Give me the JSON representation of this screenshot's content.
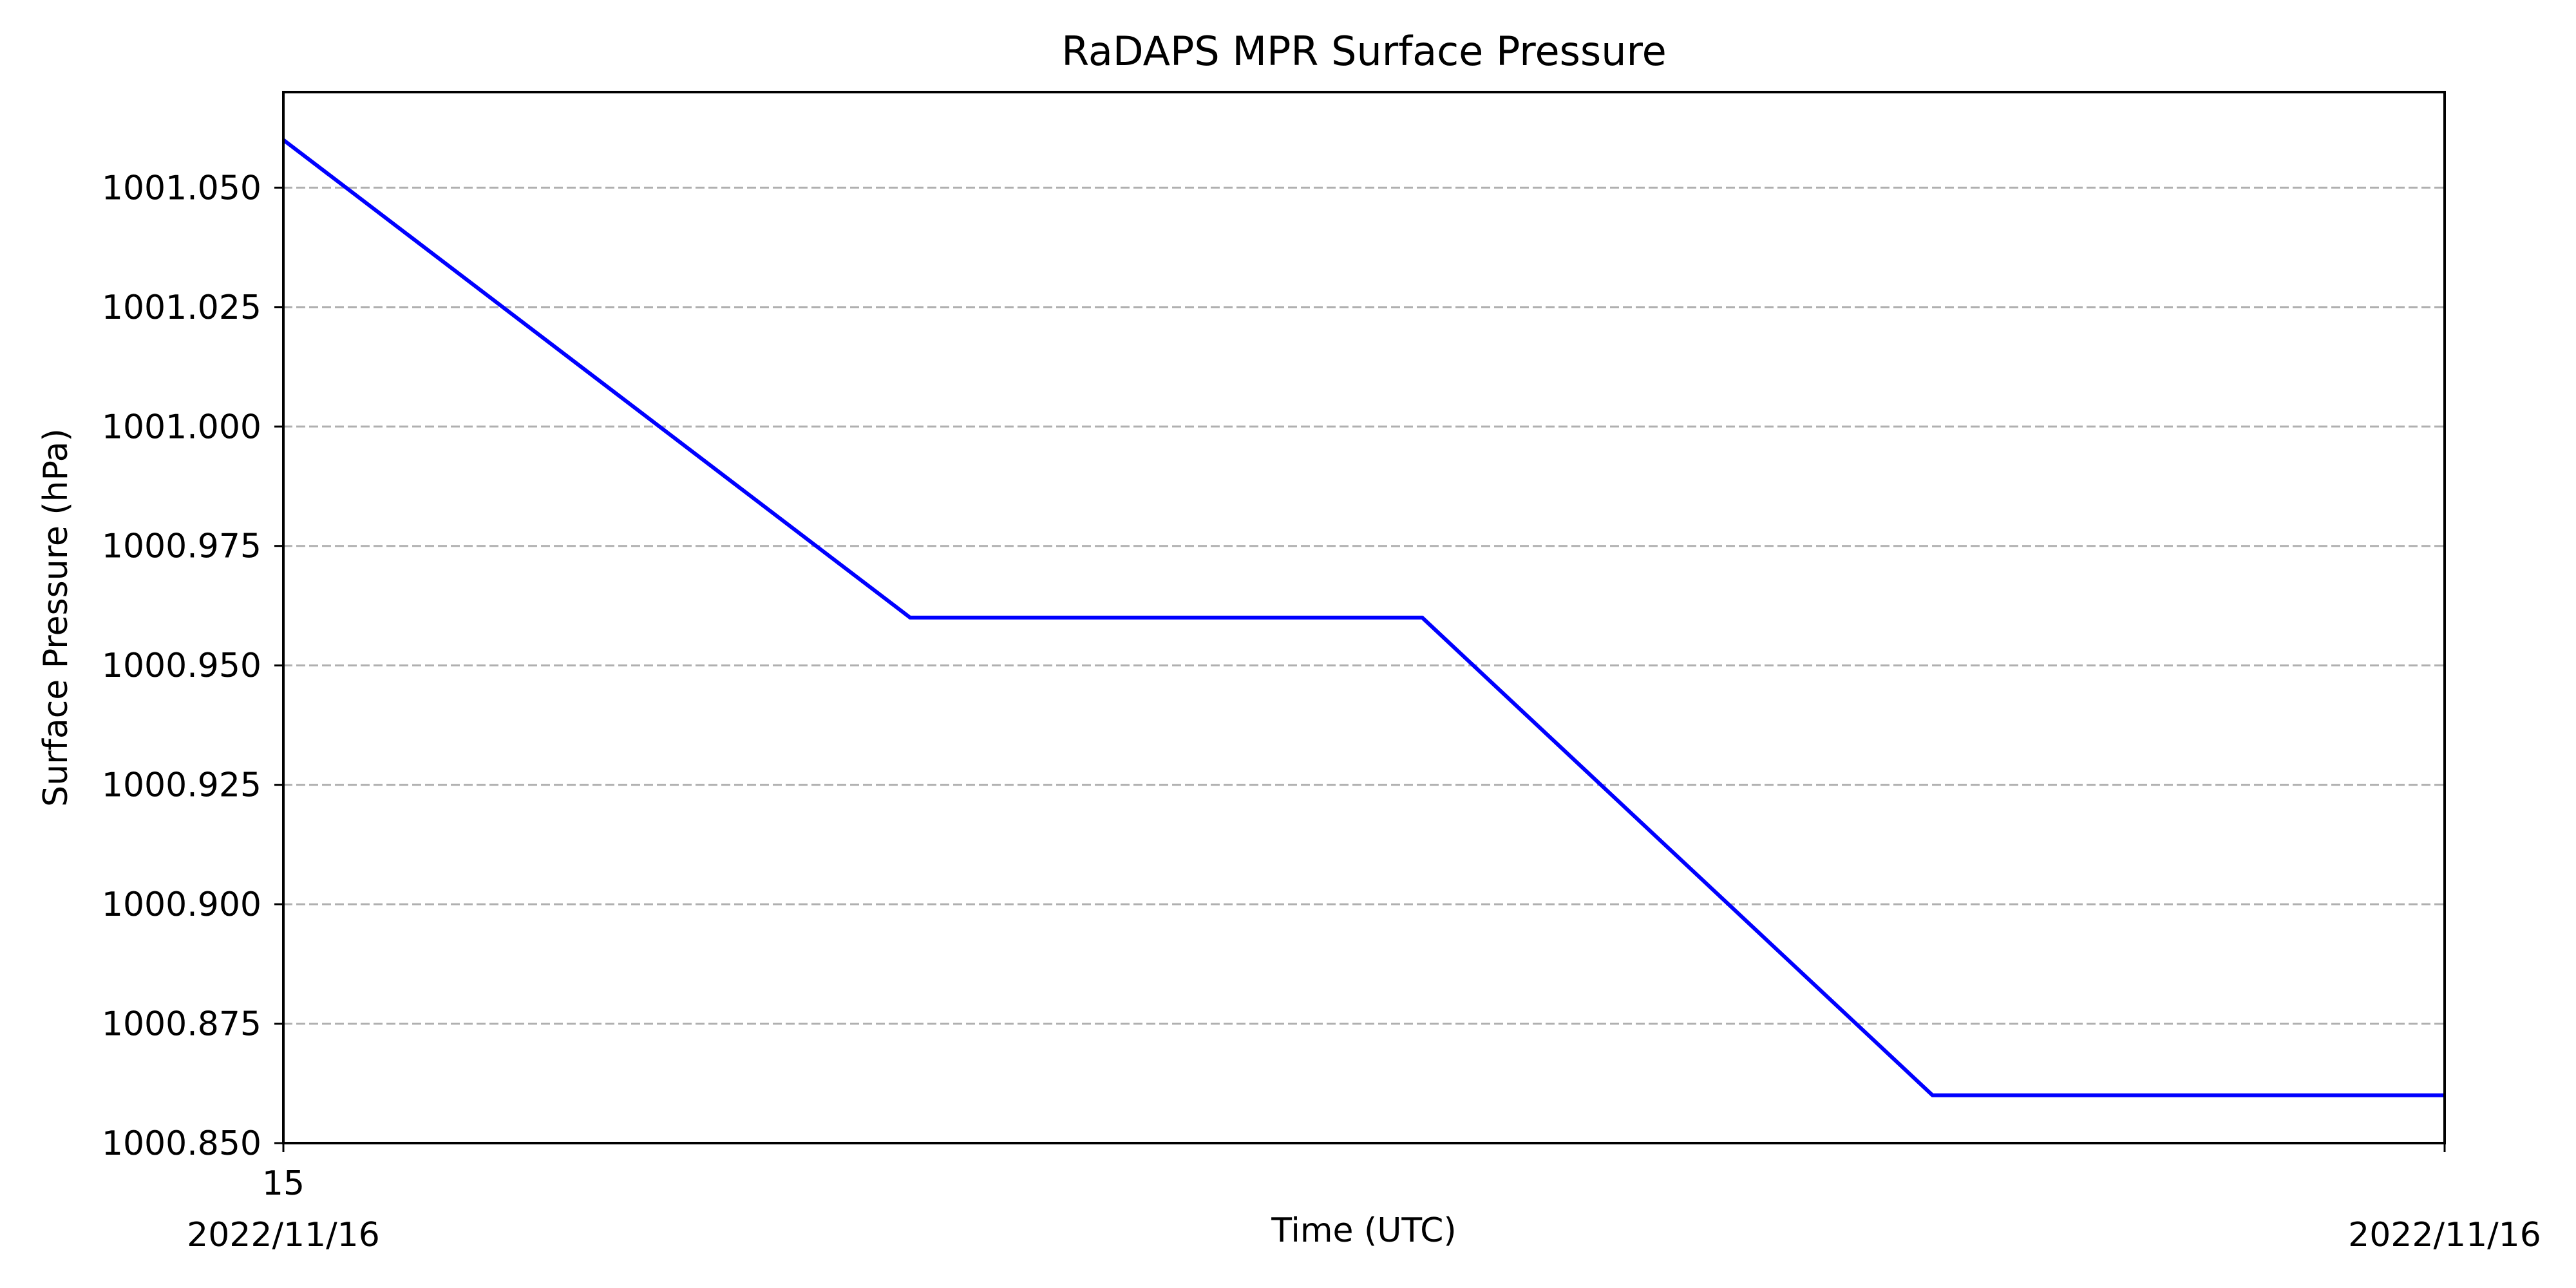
{
  "chart_data": {
    "type": "line",
    "title": "RaDAPS MPR Surface Pressure",
    "xlabel": "Time (UTC)",
    "ylabel": "Surface Pressure (hPa)",
    "x_tick_labels": [
      {
        "x": 15.0,
        "lines": [
          "15",
          "2022/11/16"
        ]
      },
      {
        "x": 15.0013,
        "lines": [
          "",
          "2022/11/16"
        ]
      }
    ],
    "xlim": [
      15.0,
      15.0013
    ],
    "ylim": [
      1000.85,
      1001.07
    ],
    "y_ticks": [
      1000.85,
      1000.875,
      1000.9,
      1000.925,
      1000.95,
      1000.975,
      1001.0,
      1001.025,
      1001.05
    ],
    "y_tick_labels": [
      "1000.850",
      "1000.875",
      "1000.900",
      "1000.925",
      "1000.950",
      "1000.975",
      "1001.000",
      "1001.025",
      "1001.050"
    ],
    "grid": "y-dashed",
    "series": [
      {
        "color": "#0000ff",
        "x": [
          15.0,
          15.000377,
          15.000685,
          15.000992,
          15.0013
        ],
        "y": [
          1001.06,
          1000.96,
          1000.96,
          1000.86,
          1000.86
        ]
      }
    ]
  },
  "colors": {
    "line": "#0000ff",
    "grid": "#b0b0b0",
    "axis": "#000000"
  }
}
